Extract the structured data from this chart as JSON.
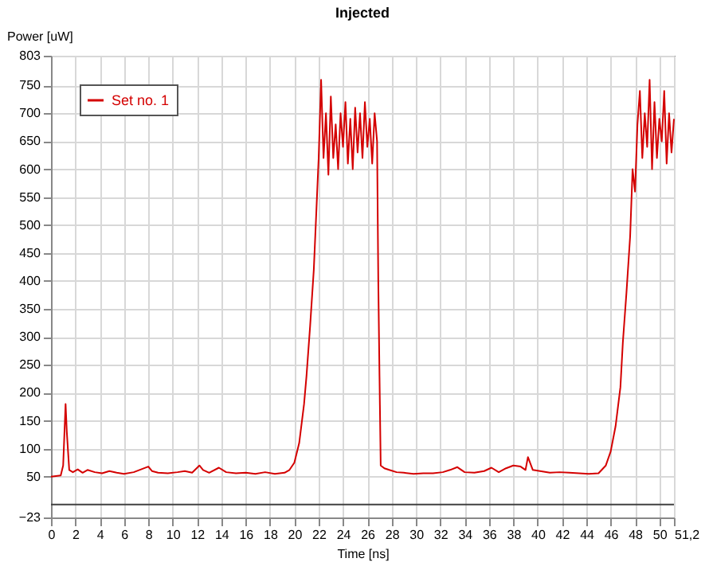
{
  "chart_data": {
    "type": "line",
    "title": "Injected",
    "xlabel": "Time [ns]",
    "ylabel": "Power [uW]",
    "xlim": [
      0,
      51.2
    ],
    "xticks": [
      0,
      2,
      4,
      6,
      8,
      10,
      12,
      14,
      16,
      18,
      20,
      22,
      24,
      26,
      28,
      30,
      32,
      34,
      36,
      38,
      40,
      42,
      44,
      46,
      48,
      50,
      {
        "value": 51.2,
        "label": "51,2"
      }
    ],
    "ylim": [
      -23,
      803
    ],
    "yticks": [
      -23,
      50,
      100,
      150,
      200,
      250,
      300,
      350,
      400,
      450,
      500,
      550,
      600,
      650,
      700,
      750,
      803
    ],
    "grid": true,
    "legend": "top left",
    "marker": "none",
    "line_style": "solid",
    "ref_lines": [
      {
        "axis": "y",
        "value": 0,
        "color": "#404040"
      }
    ],
    "x": [
      0,
      0.8,
      1.0,
      1.2,
      1.3,
      1.5,
      1.8,
      2.2,
      2.6,
      3.0,
      3.6,
      4.2,
      4.8,
      5.4,
      6.0,
      6.8,
      7.4,
      8.0,
      8.3,
      8.8,
      9.6,
      10.4,
      11.0,
      11.6,
      12.2,
      12.5,
      13.0,
      13.8,
      14.4,
      15.2,
      16.0,
      16.8,
      17.6,
      18.4,
      19.2,
      19.6,
      20.0,
      20.4,
      20.8,
      21.0,
      21.3,
      21.6,
      21.8,
      22.0,
      22.2,
      22.4,
      22.6,
      22.8,
      23.0,
      23.2,
      23.4,
      23.6,
      23.8,
      24.0,
      24.2,
      24.4,
      24.6,
      24.8,
      25.0,
      25.2,
      25.4,
      25.6,
      25.8,
      26.0,
      26.2,
      26.4,
      26.6,
      26.8,
      26.9,
      27.0,
      27.1,
      27.4,
      27.8,
      28.4,
      29.0,
      29.8,
      30.6,
      31.4,
      32.2,
      32.8,
      33.4,
      34.0,
      34.8,
      35.6,
      36.2,
      36.8,
      37.4,
      38.0,
      38.6,
      39.0,
      39.2,
      39.6,
      40.2,
      41.0,
      41.8,
      42.6,
      43.4,
      44.2,
      45.0,
      45.6,
      46.0,
      46.4,
      46.8,
      47.0,
      47.3,
      47.6,
      47.8,
      48.0,
      48.2,
      48.4,
      48.6,
      48.8,
      49.0,
      49.2,
      49.4,
      49.6,
      49.8,
      50.0,
      50.2,
      50.4,
      50.6,
      50.8,
      51.0,
      51.2
    ],
    "series": [
      {
        "name": "Set no. 1",
        "color": "#d40000",
        "values": [
          50,
          52,
          70,
          180,
          130,
          62,
          58,
          63,
          57,
          62,
          58,
          56,
          60,
          57,
          55,
          58,
          63,
          68,
          60,
          57,
          56,
          58,
          60,
          57,
          70,
          62,
          57,
          66,
          58,
          56,
          57,
          55,
          58,
          55,
          57,
          62,
          75,
          110,
          180,
          230,
          320,
          420,
          520,
          620,
          760,
          620,
          700,
          590,
          730,
          620,
          680,
          600,
          700,
          640,
          720,
          610,
          690,
          600,
          710,
          630,
          700,
          620,
          720,
          640,
          690,
          610,
          700,
          650,
          400,
          230,
          70,
          65,
          62,
          58,
          57,
          55,
          56,
          56,
          58,
          62,
          67,
          58,
          57,
          60,
          66,
          58,
          65,
          70,
          68,
          62,
          85,
          62,
          60,
          57,
          58,
          57,
          56,
          55,
          56,
          70,
          95,
          140,
          210,
          290,
          380,
          480,
          600,
          560,
          680,
          740,
          620,
          700,
          640,
          760,
          600,
          720,
          620,
          690,
          650,
          740,
          610,
          700,
          630,
          690
        ]
      }
    ]
  }
}
